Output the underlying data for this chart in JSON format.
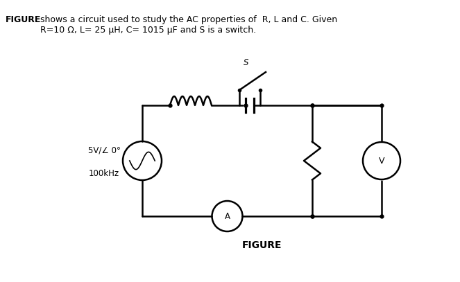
{
  "title_text": "FIGURE",
  "title_bold": true,
  "description": "shows a circuit used to study the AC properties of  R, L and C. Given\nR=10 Ω, L= 25 μH, C= 1015 μF and S is a switch.",
  "figure_label": "FIGURE",
  "source_label": "5V/∠ 0°\n100kHz",
  "switch_label": "S",
  "voltmeter_label": "V",
  "ammeter_label": "A",
  "bg_color": "#ffffff",
  "line_color": "#000000",
  "figsize": [
    6.63,
    4.07
  ],
  "dpi": 100
}
